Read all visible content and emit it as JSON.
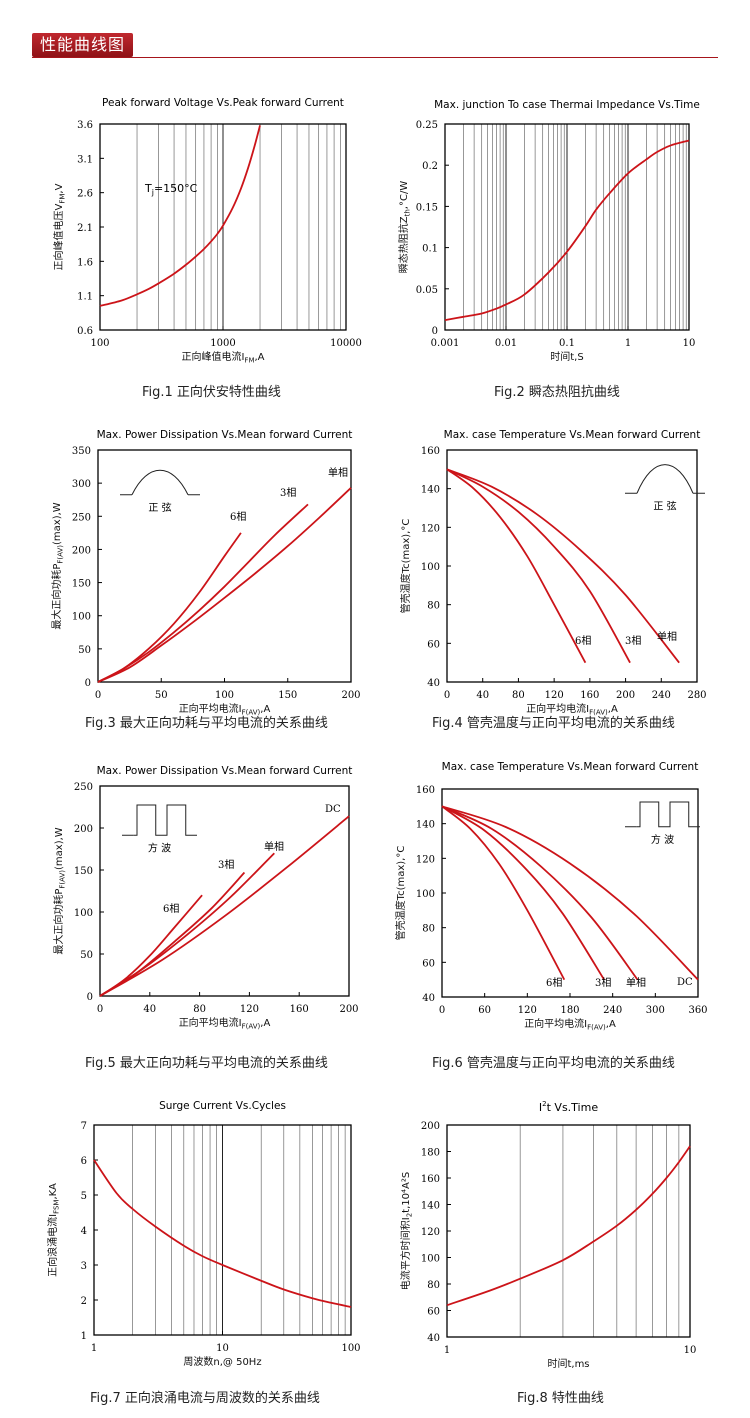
{
  "header": {
    "title": "性能曲线图"
  },
  "colors": {
    "curve": "#cc1419",
    "axis": "#000000",
    "grid": "#555555",
    "accent": "#a6151b"
  },
  "charts": [
    {
      "id": "fig1",
      "type": "line",
      "title": "Peak forward Voltage Vs.Peak forward Current",
      "xlabel": "正向峰值电流I FM,A",
      "xlabel_parts": [
        "正向峰值电流I",
        "FM",
        ",A"
      ],
      "ylabel_parts": [
        "正向峰值电压V",
        "FM",
        ",V"
      ],
      "xscale": "log",
      "xlim": [
        100,
        10000
      ],
      "ylim": [
        0.6,
        3.6
      ],
      "xticks": [
        100,
        1000,
        10000
      ],
      "xtick_labels": [
        "100",
        "1000",
        "10000"
      ],
      "yticks": [
        0.6,
        1.1,
        1.6,
        2.1,
        2.6,
        3.1,
        3.6
      ],
      "ytick_labels": [
        "0.6",
        "1.1",
        "1.6",
        "2.1",
        "2.6",
        "3.1",
        "3.6"
      ],
      "grid_x": "log",
      "grid_y": false,
      "annotation": {
        "text_parts": [
          "T",
          "j",
          "=150°C"
        ]
      },
      "series": [
        {
          "x": [
            100,
            150,
            200,
            250,
            300,
            400,
            500,
            600,
            700,
            800,
            900,
            1000,
            1200,
            1400,
            1600,
            1800,
            2000
          ],
          "y": [
            0.95,
            1.03,
            1.12,
            1.2,
            1.28,
            1.42,
            1.55,
            1.67,
            1.78,
            1.89,
            2.0,
            2.12,
            2.38,
            2.66,
            2.96,
            3.27,
            3.58
          ]
        }
      ]
    },
    {
      "id": "fig2",
      "type": "line",
      "title": "Max. junction To case Thermai Impedance Vs.Time",
      "xlabel_parts": [
        "时间t,S",
        "",
        ""
      ],
      "ylabel_parts": [
        "瞬态热阻抗Z",
        "th",
        ",°C/W"
      ],
      "xscale": "log",
      "xlim": [
        0.001,
        10
      ],
      "ylim": [
        0,
        0.25
      ],
      "xticks": [
        0.001,
        0.01,
        0.1,
        1,
        10
      ],
      "xtick_labels": [
        "0.001",
        "0.01",
        "0.1",
        "1",
        "10"
      ],
      "yticks": [
        0,
        0.05,
        0.1,
        0.15,
        0.2,
        0.25
      ],
      "ytick_labels": [
        "0",
        "0.05",
        "0.1",
        "0.15",
        "0.2",
        "0.25"
      ],
      "grid_x": "log",
      "grid_y": false,
      "series": [
        {
          "x": [
            0.001,
            0.002,
            0.004,
            0.007,
            0.01,
            0.02,
            0.05,
            0.1,
            0.2,
            0.3,
            0.5,
            1,
            2,
            3,
            5,
            10
          ],
          "y": [
            0.012,
            0.016,
            0.02,
            0.026,
            0.031,
            0.043,
            0.07,
            0.095,
            0.126,
            0.146,
            0.166,
            0.19,
            0.207,
            0.216,
            0.224,
            0.23
          ]
        }
      ]
    },
    {
      "id": "fig3",
      "type": "line",
      "title": "Max. Power Dissipation Vs.Mean forward Current",
      "xlabel_parts": [
        "正向平均电流I",
        "F(AV)",
        ",A"
      ],
      "ylabel_parts": [
        "最大正向功耗P",
        "F(AV)",
        "(max),W"
      ],
      "xscale": "linear",
      "xlim": [
        0,
        200
      ],
      "ylim": [
        0,
        350
      ],
      "xticks": [
        0,
        50,
        100,
        150,
        200
      ],
      "xtick_labels": [
        "0",
        "50",
        "100",
        "150",
        "200"
      ],
      "yticks": [
        0,
        50,
        100,
        150,
        200,
        250,
        300,
        350
      ],
      "ytick_labels": [
        "0",
        "50",
        "100",
        "150",
        "200",
        "250",
        "300",
        "350"
      ],
      "grid_x": false,
      "grid_y": false,
      "inset": {
        "shape": "sine",
        "label": "正 弦"
      },
      "series": [
        {
          "name": "6相",
          "x": [
            0,
            20,
            40,
            60,
            80,
            100,
            113
          ],
          "y": [
            0,
            20,
            50,
            88,
            135,
            190,
            225
          ]
        },
        {
          "name": "3相",
          "x": [
            0,
            20,
            40,
            60,
            80,
            100,
            120,
            140,
            166
          ],
          "y": [
            0,
            20,
            45,
            75,
            108,
            144,
            183,
            222,
            268
          ]
        },
        {
          "name": "单相",
          "x": [
            0,
            25,
            50,
            75,
            100,
            125,
            150,
            175,
            200
          ],
          "y": [
            0,
            22,
            55,
            90,
            127,
            165,
            205,
            248,
            293
          ]
        }
      ]
    },
    {
      "id": "fig4",
      "type": "line",
      "title": "Max. case Temperature Vs.Mean forward Current",
      "xlabel_parts": [
        "正向平均电流I",
        "F(AV)",
        ",A"
      ],
      "ylabel_parts": [
        "管壳温度Tc(max),°C",
        "",
        ""
      ],
      "xscale": "linear",
      "xlim": [
        0,
        280
      ],
      "ylim": [
        40,
        160
      ],
      "xticks": [
        0,
        40,
        80,
        120,
        160,
        200,
        240,
        280
      ],
      "xtick_labels": [
        "0",
        "40",
        "80",
        "120",
        "160",
        "200",
        "240",
        "280"
      ],
      "yticks": [
        40,
        60,
        80,
        100,
        120,
        140,
        160
      ],
      "ytick_labels": [
        "40",
        "60",
        "80",
        "100",
        "120",
        "140",
        "160"
      ],
      "grid_x": false,
      "grid_y": false,
      "inset": {
        "shape": "sine",
        "label": "正 弦"
      },
      "series": [
        {
          "name": "6相",
          "x": [
            0,
            30,
            60,
            90,
            120,
            155
          ],
          "y": [
            150,
            140,
            125,
            105,
            80,
            50
          ]
        },
        {
          "name": "3相",
          "x": [
            0,
            40,
            80,
            120,
            160,
            205
          ],
          "y": [
            150,
            141,
            128,
            110,
            87,
            50
          ]
        },
        {
          "name": "单相",
          "x": [
            0,
            50,
            100,
            150,
            200,
            260
          ],
          "y": [
            150,
            141,
            127,
            108,
            85,
            50
          ]
        }
      ]
    },
    {
      "id": "fig5",
      "type": "line",
      "title": "Max. Power Dissipation Vs.Mean forward Current",
      "xlabel_parts": [
        "正向平均电流I",
        "F(AV)",
        ",A"
      ],
      "ylabel_parts": [
        "最大正向功耗P",
        "F(AV)",
        "(max),W"
      ],
      "xscale": "linear",
      "xlim": [
        0,
        200
      ],
      "ylim": [
        0,
        250
      ],
      "xticks": [
        0,
        40,
        80,
        120,
        160,
        200
      ],
      "xtick_labels": [
        "0",
        "40",
        "80",
        "120",
        "160",
        "200"
      ],
      "yticks": [
        0,
        50,
        100,
        150,
        200,
        250
      ],
      "ytick_labels": [
        "0",
        "50",
        "100",
        "150",
        "200",
        "250"
      ],
      "grid_x": false,
      "grid_y": false,
      "inset": {
        "shape": "square",
        "label": "方 波"
      },
      "series": [
        {
          "name": "6相",
          "x": [
            0,
            20,
            40,
            60,
            82
          ],
          "y": [
            0,
            20,
            48,
            82,
            120
          ]
        },
        {
          "name": "3相",
          "x": [
            0,
            30,
            60,
            90,
            116
          ],
          "y": [
            0,
            28,
            65,
            105,
            147
          ]
        },
        {
          "name": "单相",
          "x": [
            0,
            35,
            70,
            105,
            140
          ],
          "y": [
            0,
            33,
            73,
            118,
            170
          ]
        },
        {
          "name": "DC",
          "x": [
            0,
            50,
            100,
            150,
            200
          ],
          "y": [
            0,
            43,
            95,
            153,
            214
          ]
        }
      ]
    },
    {
      "id": "fig6",
      "type": "line",
      "title": "Max. case Temperature Vs.Mean forward Current",
      "xlabel_parts": [
        "正向平均电流I",
        "F(AV)",
        ",A"
      ],
      "ylabel_parts": [
        "管壳温度Tc(max),°C",
        "",
        ""
      ],
      "xscale": "linear",
      "xlim": [
        0,
        360
      ],
      "ylim": [
        40,
        160
      ],
      "xticks": [
        0,
        60,
        120,
        180,
        240,
        300,
        360
      ],
      "xtick_labels": [
        "0",
        "60",
        "120",
        "180",
        "240",
        "300",
        "360"
      ],
      "yticks": [
        40,
        60,
        80,
        100,
        120,
        140,
        160
      ],
      "ytick_labels": [
        "40",
        "60",
        "80",
        "100",
        "120",
        "140",
        "160"
      ],
      "grid_x": false,
      "grid_y": false,
      "inset": {
        "shape": "square",
        "label": "方 波"
      },
      "series": [
        {
          "name": "6相",
          "x": [
            0,
            40,
            80,
            120,
            172
          ],
          "y": [
            150,
            137,
            117,
            90,
            50
          ]
        },
        {
          "name": "3相",
          "x": [
            0,
            60,
            120,
            170,
            228
          ],
          "y": [
            150,
            136,
            113,
            88,
            50
          ]
        },
        {
          "name": "单相",
          "x": [
            0,
            70,
            140,
            210,
            275
          ],
          "y": [
            150,
            137,
            115,
            86,
            50
          ]
        },
        {
          "name": "DC",
          "x": [
            0,
            90,
            180,
            270,
            360
          ],
          "y": [
            150,
            138,
            117,
            88,
            50
          ]
        }
      ]
    },
    {
      "id": "fig7",
      "type": "line",
      "title": "Surge Current Vs.Cycles",
      "xlabel_parts": [
        "周波数n,@ 50Hz",
        "",
        ""
      ],
      "ylabel_parts": [
        "正向浪涌电流I",
        "FSM",
        ",KA"
      ],
      "xscale": "log",
      "xlim": [
        1,
        100
      ],
      "ylim": [
        1,
        7
      ],
      "xticks": [
        1,
        10,
        100
      ],
      "xtick_labels": [
        "1",
        "10",
        "100"
      ],
      "yticks": [
        1,
        2,
        3,
        4,
        5,
        6,
        7
      ],
      "ytick_labels": [
        "1",
        "2",
        "3",
        "4",
        "5",
        "6",
        "7"
      ],
      "grid_x": "log",
      "grid_y": false,
      "series": [
        {
          "x": [
            1,
            1.5,
            2,
            3,
            5,
            7,
            10,
            20,
            30,
            50,
            70,
            100
          ],
          "y": [
            6.0,
            5.05,
            4.6,
            4.1,
            3.55,
            3.25,
            3.0,
            2.55,
            2.3,
            2.05,
            1.92,
            1.8
          ]
        }
      ]
    },
    {
      "id": "fig8",
      "type": "line",
      "title_parts": [
        "I",
        "2",
        "t  Vs.Time"
      ],
      "xlabel_parts": [
        "时间t,ms",
        "",
        ""
      ],
      "ylabel_parts": [
        "电流平方时间积I",
        "2",
        "t,10⁴A²S"
      ],
      "xscale": "log",
      "xlim": [
        1,
        10
      ],
      "ylim": [
        40,
        200
      ],
      "xticks": [
        1,
        10
      ],
      "xtick_labels": [
        "1",
        "10"
      ],
      "yticks": [
        40,
        60,
        80,
        100,
        120,
        140,
        160,
        180,
        200
      ],
      "ytick_labels": [
        "40",
        "60",
        "80",
        "100",
        "120",
        "140",
        "160",
        "180",
        "200"
      ],
      "grid_x": "log",
      "grid_y": false,
      "series": [
        {
          "x": [
            1,
            1.5,
            2,
            3,
            4,
            5,
            6,
            7,
            8,
            9,
            10
          ],
          "y": [
            64,
            75,
            84,
            98,
            112,
            124,
            136,
            148,
            160,
            172,
            184
          ]
        }
      ]
    }
  ],
  "captions": {
    "fig1": "Fig.1  正向伏安特性曲线",
    "fig2": "Fig.2  瞬态热阻抗曲线",
    "fig3": "Fig.3  最大正向功耗与平均电流的关系曲线",
    "fig4": "Fig.4  管壳温度与正向平均电流的关系曲线",
    "fig5": "Fig.5  最大正向功耗与平均电流的关系曲线",
    "fig6": "Fig.6  管壳温度与正向平均电流的关系曲线",
    "fig7": "Fig.7  正向浪涌电流与周波数的关系曲线",
    "fig8": "Fig.8  特性曲线"
  }
}
